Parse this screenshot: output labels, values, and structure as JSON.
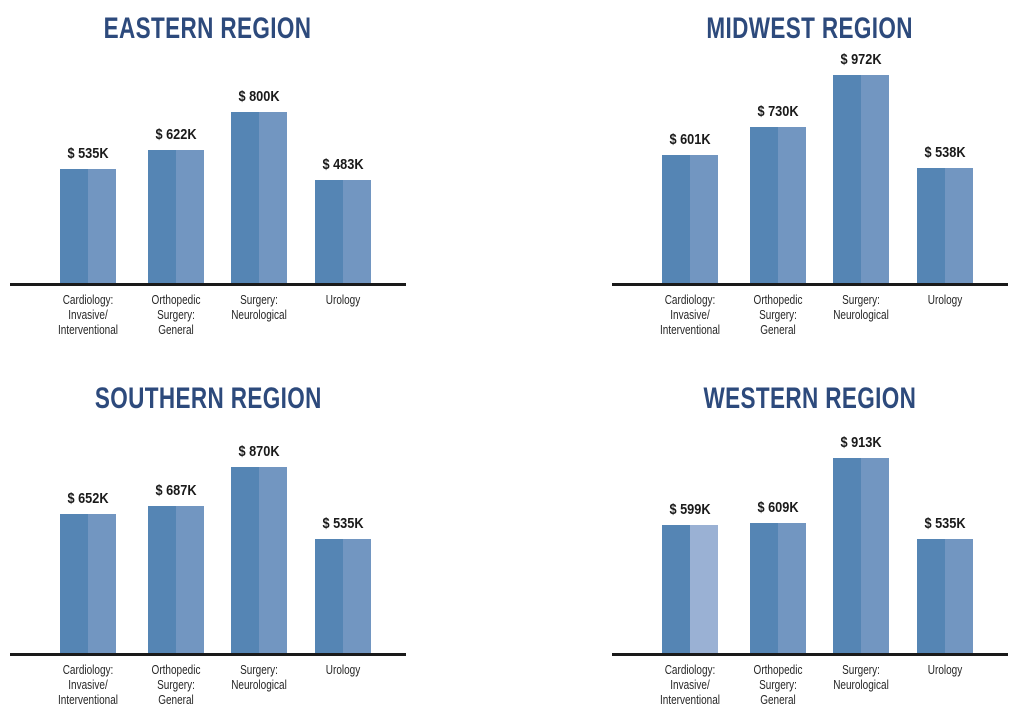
{
  "colors": {
    "background": "#ffffff",
    "title_text": "#2d4a7c",
    "value_label_text": "#1a1a1a",
    "category_label_text": "#262626",
    "axis_line": "#1a1a1a",
    "bar_left_half": "#5585b4",
    "bar_right_half": "#7296c1",
    "bar_right_half_light_variant": "#9ab1d4"
  },
  "chart_data": [
    {
      "type": "bar",
      "title": "EASTERN REGION",
      "categories": [
        "Cardiology:\nInvasive/\nInterventional",
        "Orthopedic\nSurgery:\nGeneral",
        "Surgery:\nNeurological",
        "Urology"
      ],
      "values": [
        535,
        622,
        800,
        483
      ],
      "value_labels": [
        "$ 535K",
        "$ 622K",
        "$ 800K",
        "$ 483K"
      ],
      "legend": "none",
      "grid": false
    },
    {
      "type": "bar",
      "title": "MIDWEST REGION",
      "categories": [
        "Cardiology:\nInvasive/\nInterventional",
        "Orthopedic\nSurgery:\nGeneral",
        "Surgery:\nNeurological",
        "Urology"
      ],
      "values": [
        601,
        730,
        972,
        538
      ],
      "value_labels": [
        "$ 601K",
        "$ 730K",
        "$ 972K",
        "$ 538K"
      ],
      "legend": "none",
      "grid": false
    },
    {
      "type": "bar",
      "title": "SOUTHERN REGION",
      "categories": [
        "Cardiology:\nInvasive/\nInterventional",
        "Orthopedic\nSurgery:\nGeneral",
        "Surgery:\nNeurological",
        "Urology"
      ],
      "values": [
        652,
        687,
        870,
        535
      ],
      "value_labels": [
        "$ 652K",
        "$ 687K",
        "$ 870K",
        "$ 535K"
      ],
      "legend": "none",
      "grid": false
    },
    {
      "type": "bar",
      "title": "WESTERN REGION",
      "categories": [
        "Cardiology:\nInvasive/\nInterventional",
        "Orthopedic\nSurgery:\nGeneral",
        "Surgery:\nNeurological",
        "Urology"
      ],
      "values": [
        599,
        609,
        913,
        535
      ],
      "value_labels": [
        "$ 599K",
        "$ 609K",
        "$ 913K",
        "$ 535K"
      ],
      "alt_light_bar_index": 0,
      "legend": "none",
      "grid": false
    }
  ]
}
